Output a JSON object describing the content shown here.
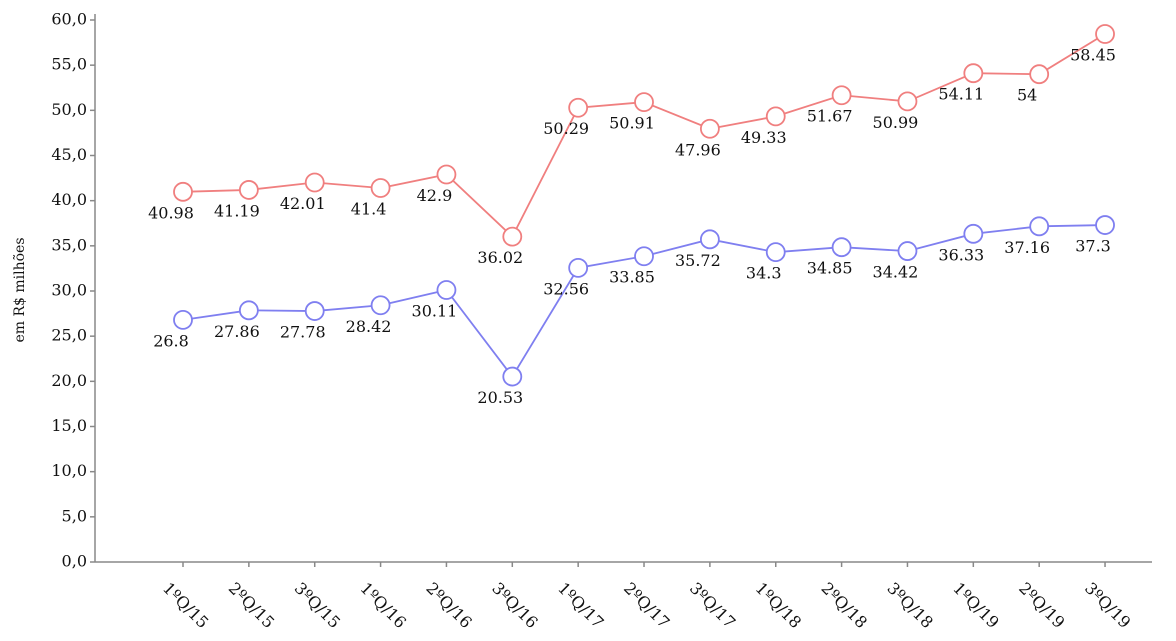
{
  "chart_data": {
    "type": "line",
    "ylabel": "em R$ milhões",
    "categories": [
      "1ºQ/15",
      "2ºQ/15",
      "3ºQ/15",
      "1ºQ/16",
      "2ºQ/16",
      "3ºQ/16",
      "1ºQ/17",
      "2ºQ/17",
      "3ºQ/17",
      "1ºQ/18",
      "2ºQ/18",
      "3ºQ/18",
      "1ºQ/19",
      "2ºQ/19",
      "3ºQ/19"
    ],
    "series": [
      {
        "color": "#f07f7f",
        "values": [
          40.98,
          41.19,
          42.01,
          41.4,
          42.9,
          36.02,
          50.29,
          50.91,
          47.96,
          49.33,
          51.67,
          50.99,
          54.11,
          54,
          58.45
        ]
      },
      {
        "color": "#7f7ff0",
        "values": [
          26.8,
          27.86,
          27.78,
          28.42,
          30.11,
          20.53,
          32.56,
          33.85,
          35.72,
          34.3,
          34.85,
          34.42,
          36.33,
          37.16,
          37.3
        ]
      }
    ],
    "ylim": [
      0,
      60
    ],
    "yticks": [
      {
        "value": 0,
        "label": "0,0"
      },
      {
        "value": 5,
        "label": "5,0"
      },
      {
        "value": 10,
        "label": "10,0"
      },
      {
        "value": 15,
        "label": "15,0"
      },
      {
        "value": 20,
        "label": "20,0"
      },
      {
        "value": 25,
        "label": "25,0"
      },
      {
        "value": 30,
        "label": "30,0"
      },
      {
        "value": 35,
        "label": "35,0"
      },
      {
        "value": 40,
        "label": "40,0"
      },
      {
        "value": 45,
        "label": "45,0"
      },
      {
        "value": 50,
        "label": "50,0"
      },
      {
        "value": 55,
        "label": "55,0"
      },
      {
        "value": 60,
        "label": "60,0"
      }
    ]
  }
}
